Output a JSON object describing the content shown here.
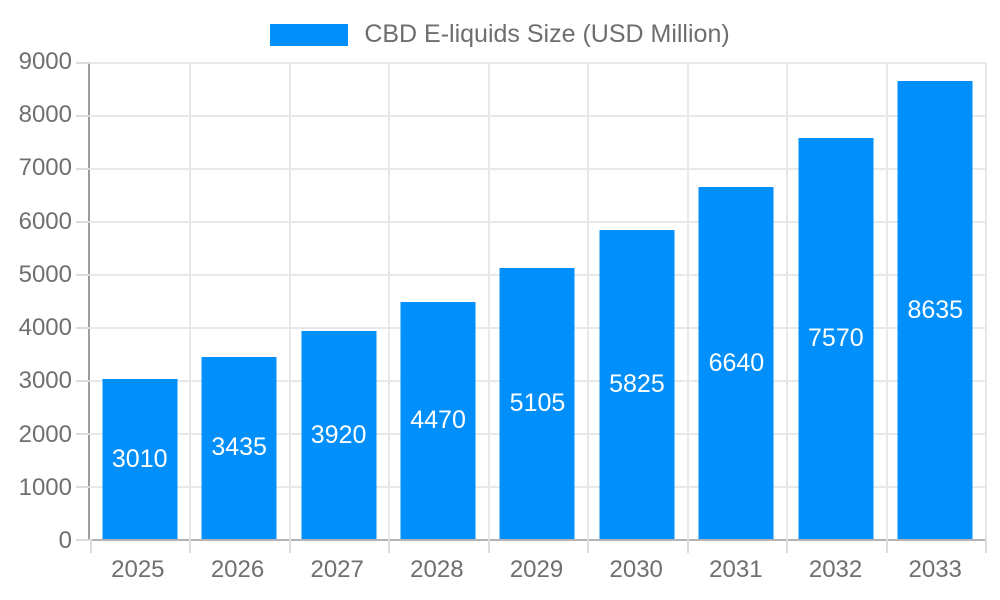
{
  "chart_data": {
    "type": "bar",
    "title": "CBD E-liquids Size (USD Million)",
    "categories": [
      "2025",
      "2026",
      "2027",
      "2028",
      "2029",
      "2030",
      "2031",
      "2032",
      "2033"
    ],
    "values": [
      3010,
      3435,
      3920,
      4470,
      5105,
      5825,
      6640,
      7570,
      8635
    ],
    "xlabel": "",
    "ylabel": "",
    "ylim": [
      0,
      9000
    ],
    "ytick_step": 1000,
    "grid": true,
    "legend_position": "top",
    "colors": {
      "bar": "#008FFB",
      "data_label": "#FFFFFF",
      "axis_label": "#6F6F6F",
      "legend_label": "#6E6E6E",
      "gridline": "#E8E8E8"
    }
  }
}
